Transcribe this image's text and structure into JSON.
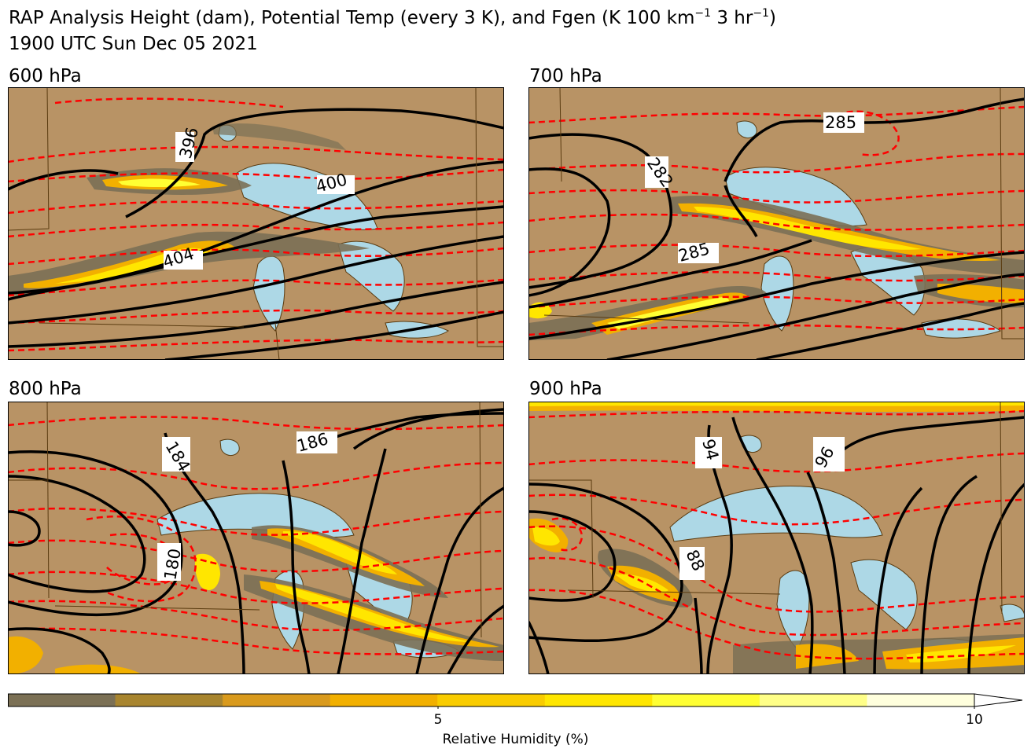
{
  "title": {
    "line1_prefix": "RAP Analysis Height (dam), Potential Temp (every 3 K), and Fgen (K 100 km",
    "line1_exp1": "−1",
    "line1_mid": " 3 hr",
    "line1_exp2": "−1",
    "line1_suffix": ")",
    "line2": "1900 UTC Sun Dec 05 2021"
  },
  "panels": [
    {
      "label": "600 hPa",
      "contour_labels": [
        "396",
        "400",
        "404"
      ]
    },
    {
      "label": "700 hPa",
      "contour_labels": [
        "285",
        "282",
        "285"
      ]
    },
    {
      "label": "800 hPa",
      "contour_labels": [
        "184",
        "186",
        "180"
      ]
    },
    {
      "label": "900 hPa",
      "contour_labels": [
        "94",
        "96",
        "88"
      ]
    }
  ],
  "colorbar": {
    "label": "Relative Humidity (%)",
    "ticks": [
      "5",
      "10"
    ],
    "tick_values": [
      5,
      10
    ],
    "range": [
      1,
      10
    ],
    "colors": [
      "#7b7055",
      "#a8852f",
      "#d99a1d",
      "#f2b000",
      "#f9cc00",
      "#ffe600",
      "#ffff33",
      "#ffff88",
      "#ffffdd"
    ]
  },
  "colors": {
    "land": "#b89365",
    "water": "#add8e6",
    "height_contour": "#000000",
    "theta_contour": "#ff0000",
    "border": "#5a3b10"
  }
}
